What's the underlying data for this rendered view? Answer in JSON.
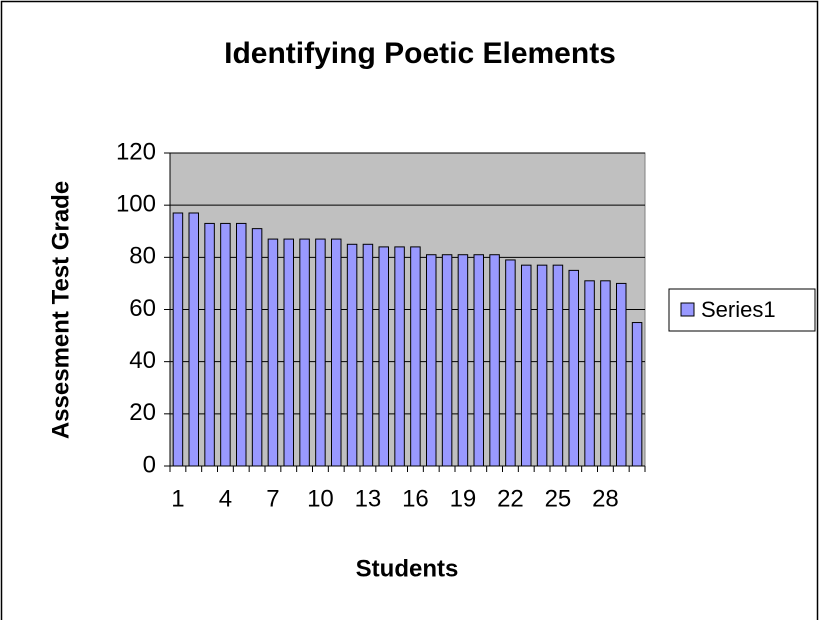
{
  "chart_data": {
    "type": "bar",
    "title": "Identifying Poetic Elements",
    "x_label": "Students",
    "y_label": "Assesment Test Grade",
    "categories": [
      1,
      null,
      null,
      4,
      null,
      null,
      7,
      null,
      null,
      10,
      null,
      null,
      13,
      null,
      null,
      16,
      null,
      null,
      19,
      null,
      null,
      22,
      null,
      null,
      25,
      null,
      null,
      28,
      null,
      null
    ],
    "series": [
      {
        "name": "Series1",
        "color": "#9999ff",
        "values": [
          97,
          97,
          93,
          93,
          93,
          91,
          87,
          87,
          87,
          87,
          87,
          85,
          85,
          84,
          84,
          84,
          81,
          81,
          81,
          81,
          81,
          79,
          77,
          77,
          77,
          75,
          71,
          71,
          70,
          55
        ]
      }
    ],
    "ylim": [
      0,
      120
    ],
    "yticks": [
      0,
      20,
      40,
      60,
      80,
      100,
      120
    ],
    "grid": true,
    "legend": "right"
  }
}
